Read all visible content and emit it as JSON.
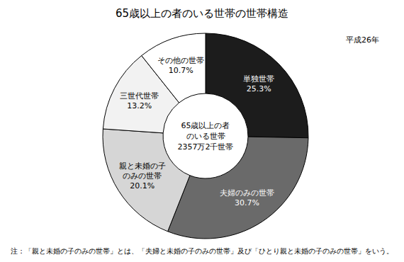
{
  "chart_data": {
    "type": "pie",
    "title": "65歳以上の者のいる世帯の世帯構造",
    "subtitle": "平成26年",
    "center_label": "65歳以上の者\nのいる世帯\n2357万2千世帯",
    "footnote": "注：「親と未婚の子のみの世帯」とは、「夫婦と未婚の子のみの世帯」及び「ひとり親と未婚の子のみの世帯」をいう。",
    "categories": [
      "単独世帯",
      "夫婦のみの世帯",
      "親と未婚の子\nのみの世帯",
      "三世代世帯",
      "その他の世帯"
    ],
    "values": [
      25.3,
      30.7,
      20.1,
      13.2,
      10.7
    ],
    "value_labels": [
      "25.3%",
      "30.7%",
      "20.1%",
      "13.2%",
      "10.7%"
    ],
    "colors": [
      "#1c1c1c",
      "#6a6a6a",
      "#d6d6d6",
      "#f2f2f2",
      "#ffffff"
    ],
    "data_labels": true
  }
}
